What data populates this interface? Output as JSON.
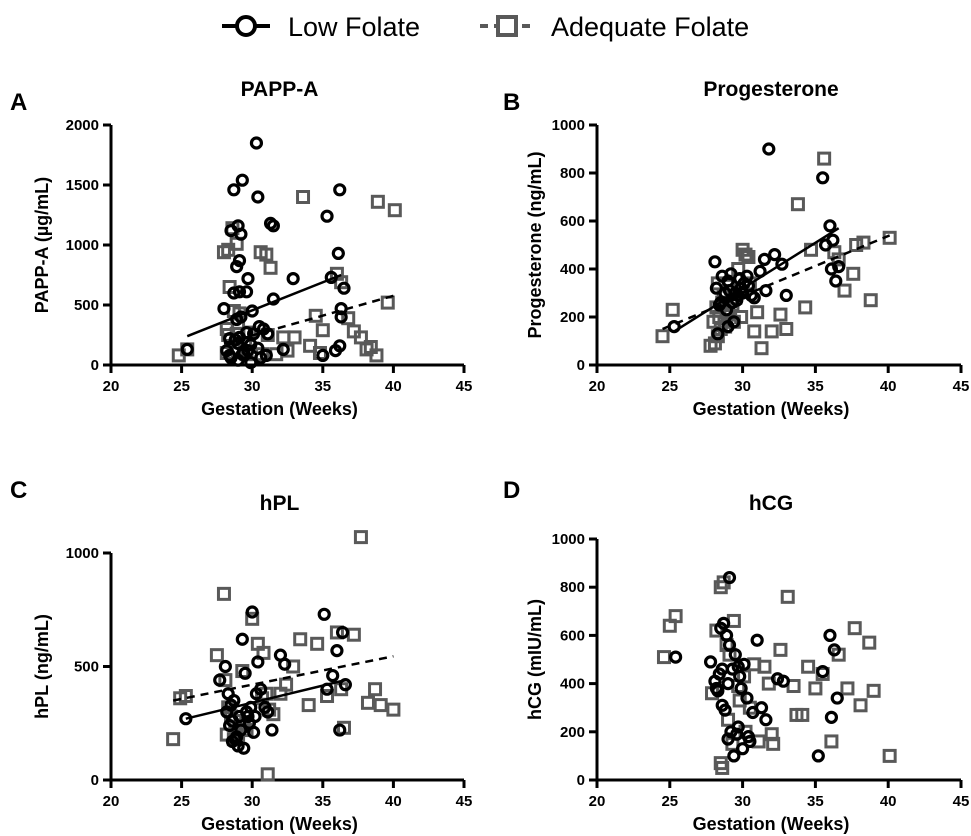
{
  "legend": {
    "low": "Low Folate",
    "adequate": "Adequate Folate"
  },
  "colors": {
    "low": "#000000",
    "adequate": "#595959"
  },
  "chart_data": [
    {
      "letter": "A",
      "type": "scatter",
      "title": "PAPP-A",
      "xlabel": "Gestation (Weeks)",
      "ylabel": "PAPP-A  (µg/mL)",
      "xlim": [
        20,
        45
      ],
      "ylim": [
        0,
        2000
      ],
      "xticks": [
        20,
        25,
        30,
        35,
        40,
        45
      ],
      "yticks": [
        0,
        500,
        1000,
        1500,
        2000
      ],
      "series": [
        {
          "name": "Low Folate",
          "x": [
            25.4,
            28.7,
            29.3,
            30.3,
            29.0,
            28.5,
            30.4,
            29.2,
            29.1,
            28.0,
            28.9,
            29.6,
            29.7,
            31.3,
            31.5,
            28.7,
            29.1,
            31.5,
            28.9,
            29.2,
            30.0,
            28.4,
            28.8,
            28.2,
            29.0,
            29.6,
            30.1,
            29.9,
            30.5,
            30.8,
            31.1,
            30.4,
            30.6,
            29.4,
            29.0,
            29.3,
            28.5,
            28.4,
            29.9,
            31.0,
            32.2,
            32.9,
            35.3,
            35.6,
            36.1,
            36.2,
            36.3,
            36.5,
            36.2,
            35.9,
            35.0,
            36.3,
            29.7,
            29.1
          ],
          "y": [
            130,
            1460,
            1540,
            1850,
            1160,
            1120,
            1400,
            1090,
            870,
            470,
            820,
            610,
            720,
            1180,
            1160,
            600,
            610,
            550,
            380,
            400,
            450,
            220,
            210,
            120,
            180,
            270,
            260,
            170,
            320,
            300,
            260,
            140,
            60,
            100,
            40,
            90,
            60,
            80,
            20,
            80,
            130,
            720,
            1240,
            730,
            930,
            1460,
            470,
            640,
            160,
            120,
            80,
            400,
            120,
            230
          ]
        },
        {
          "name": "Adequate Folate",
          "x": [
            24.8,
            25.4,
            28.0,
            28.3,
            28.6,
            28.9,
            29.0,
            28.4,
            28.7,
            29.1,
            28.2,
            28.9,
            29.5,
            30.6,
            31.0,
            31.3,
            28.2,
            29.0,
            28.3,
            29.8,
            30.7,
            31.1,
            31.7,
            32.2,
            32.5,
            33.0,
            33.6,
            34.1,
            34.5,
            35.0,
            36.0,
            36.3,
            36.8,
            37.2,
            37.7,
            38.1,
            38.4,
            38.8,
            38.9,
            39.6,
            40.1,
            34.8,
            29.6
          ],
          "y": [
            80,
            130,
            940,
            960,
            1140,
            1010,
            350,
            650,
            450,
            430,
            300,
            260,
            180,
            940,
            920,
            810,
            100,
            130,
            250,
            270,
            90,
            250,
            90,
            230,
            120,
            230,
            1400,
            160,
            410,
            290,
            760,
            690,
            390,
            280,
            230,
            130,
            150,
            80,
            1360,
            520,
            1290,
            100,
            90
          ]
        }
      ],
      "fits": [
        {
          "series": "Low Folate",
          "style": "solid",
          "x": [
            25.4,
            36.3
          ],
          "y": [
            240,
            750
          ]
        },
        {
          "series": "Adequate Folate",
          "style": "dashed",
          "x": [
            28.0,
            40.1
          ],
          "y": [
            180,
            580
          ]
        }
      ]
    },
    {
      "letter": "B",
      "type": "scatter",
      "title": "Progesterone",
      "xlabel": "Gestation (Weeks)",
      "ylabel": "Progesterone (ng/mL)",
      "xlim": [
        20,
        45
      ],
      "ylim": [
        0,
        1000
      ],
      "xticks": [
        20,
        25,
        30,
        35,
        40,
        45
      ],
      "yticks": [
        0,
        200,
        400,
        600,
        800,
        1000
      ],
      "series": [
        {
          "name": "Low Folate",
          "x": [
            25.3,
            28.1,
            28.2,
            28.5,
            28.8,
            29.0,
            29.2,
            29.3,
            29.5,
            29.8,
            30.1,
            30.4,
            30.6,
            28.9,
            29.4,
            29.7,
            29.9,
            30.3,
            28.6,
            29.1,
            29.6,
            28.4,
            28.3,
            29.0,
            30.0,
            30.8,
            31.5,
            31.8,
            32.2,
            32.7,
            33.0,
            31.2,
            31.6,
            35.5,
            35.7,
            36.0,
            36.2,
            36.4,
            36.6,
            36.1
          ],
          "y": [
            160,
            430,
            320,
            260,
            300,
            350,
            380,
            260,
            300,
            360,
            340,
            330,
            290,
            230,
            180,
            290,
            320,
            370,
            370,
            310,
            270,
            250,
            130,
            160,
            300,
            280,
            440,
            900,
            460,
            420,
            290,
            390,
            310,
            780,
            500,
            580,
            520,
            350,
            410,
            400
          ]
        },
        {
          "name": "Adequate Folate",
          "x": [
            24.5,
            25.2,
            27.8,
            28.0,
            28.2,
            28.4,
            28.5,
            28.6,
            28.7,
            28.9,
            29.1,
            29.3,
            29.5,
            29.7,
            30.0,
            30.2,
            30.4,
            28.1,
            28.3,
            28.8,
            29.0,
            30.5,
            31.0,
            31.3,
            32.0,
            32.6,
            33.0,
            33.8,
            34.3,
            34.7,
            35.6,
            36.3,
            36.6,
            37.0,
            37.6,
            37.8,
            38.3,
            38.8,
            40.1,
            29.4,
            28.3,
            29.9,
            30.8
          ],
          "y": [
            120,
            230,
            80,
            180,
            240,
            200,
            150,
            260,
            290,
            220,
            330,
            250,
            280,
            400,
            480,
            460,
            450,
            90,
            120,
            160,
            210,
            340,
            220,
            70,
            140,
            210,
            150,
            670,
            240,
            480,
            860,
            470,
            440,
            310,
            380,
            500,
            510,
            270,
            530,
            180,
            340,
            200,
            140
          ]
        }
      ],
      "fits": [
        {
          "series": "Low Folate",
          "style": "solid",
          "x": [
            25.3,
            36.6
          ],
          "y": [
            140,
            570
          ]
        },
        {
          "series": "Adequate Folate",
          "style": "dashed",
          "x": [
            24.5,
            40.1
          ],
          "y": [
            150,
            540
          ]
        }
      ]
    },
    {
      "letter": "C",
      "type": "scatter",
      "title": "hPL",
      "xlabel": "Gestation (Weeks)",
      "ylabel": "hPL (ng/mL)",
      "xlim": [
        20,
        45
      ],
      "ylim": [
        0,
        1000
      ],
      "xticks": [
        20,
        25,
        30,
        35,
        40,
        45
      ],
      "yticks": [
        0,
        500,
        1000
      ],
      "series": [
        {
          "name": "Low Folate",
          "x": [
            25.3,
            27.7,
            28.1,
            28.3,
            28.5,
            28.6,
            28.8,
            29.0,
            29.2,
            29.4,
            29.6,
            29.8,
            30.0,
            30.2,
            30.4,
            30.6,
            28.2,
            28.7,
            29.1,
            29.5,
            29.9,
            28.4,
            28.9,
            29.3,
            30.1,
            28.6,
            29.7,
            30.3,
            30.9,
            31.1,
            31.4,
            32.0,
            32.3,
            35.1,
            35.3,
            35.7,
            36.0,
            36.2,
            36.4,
            36.6
          ],
          "y": [
            270,
            440,
            500,
            380,
            330,
            260,
            180,
            150,
            220,
            140,
            300,
            250,
            740,
            280,
            520,
            400,
            300,
            350,
            280,
            470,
            320,
            240,
            190,
            620,
            210,
            170,
            280,
            380,
            320,
            300,
            220,
            550,
            510,
            730,
            400,
            460,
            570,
            220,
            650,
            420
          ]
        },
        {
          "name": "Adequate Folate",
          "x": [
            24.4,
            24.9,
            25.3,
            27.5,
            28.0,
            28.1,
            28.3,
            28.5,
            28.8,
            29.0,
            29.3,
            29.6,
            30.0,
            30.4,
            30.7,
            31.0,
            31.2,
            31.5,
            32.0,
            32.4,
            32.9,
            33.4,
            34.0,
            34.6,
            35.3,
            36.0,
            36.3,
            36.5,
            37.2,
            37.7,
            38.2,
            38.7,
            39.1,
            40.0,
            28.2,
            28.7,
            29.4,
            30.8,
            31.1
          ],
          "y": [
            180,
            360,
            370,
            550,
            820,
            440,
            320,
            280,
            260,
            200,
            480,
            220,
            710,
            600,
            360,
            380,
            310,
            290,
            380,
            420,
            500,
            620,
            330,
            600,
            370,
            650,
            400,
            230,
            640,
            1070,
            340,
            400,
            330,
            310,
            200,
            180,
            240,
            560,
            25
          ]
        }
      ],
      "fits": [
        {
          "series": "Low Folate",
          "style": "solid",
          "x": [
            25.3,
            36.6
          ],
          "y": [
            270,
            440
          ]
        },
        {
          "series": "Adequate Folate",
          "style": "dashed",
          "x": [
            24.4,
            40.0
          ],
          "y": [
            350,
            545
          ]
        }
      ]
    },
    {
      "letter": "D",
      "type": "scatter",
      "title": "hCG",
      "xlabel": "Gestation (Weeks)",
      "ylabel": "hCG (mIU/mL)",
      "xlim": [
        20,
        45
      ],
      "ylim": [
        0,
        1000
      ],
      "xticks": [
        20,
        25,
        30,
        35,
        40,
        45
      ],
      "yticks": [
        0,
        200,
        400,
        600,
        800,
        1000
      ],
      "series": [
        {
          "name": "Low Folate",
          "x": [
            25.4,
            27.8,
            28.1,
            28.3,
            28.5,
            28.7,
            28.9,
            29.1,
            29.3,
            29.5,
            29.7,
            29.9,
            30.1,
            30.3,
            30.5,
            30.7,
            28.2,
            28.6,
            29.0,
            29.4,
            29.8,
            28.4,
            28.8,
            29.2,
            29.6,
            30.0,
            30.4,
            28.6,
            29.1,
            31.0,
            31.3,
            31.6,
            32.4,
            32.8,
            35.2,
            35.5,
            36.0,
            36.3,
            36.5,
            36.1,
            29.0,
            29.7
          ],
          "y": [
            510,
            490,
            410,
            370,
            630,
            650,
            600,
            840,
            460,
            520,
            470,
            380,
            480,
            340,
            160,
            280,
            380,
            310,
            170,
            100,
            430,
            440,
            290,
            200,
            190,
            130,
            180,
            460,
            560,
            580,
            300,
            250,
            420,
            410,
            100,
            450,
            600,
            540,
            340,
            260,
            400,
            220
          ]
        },
        {
          "name": "Adequate Folate",
          "x": [
            24.6,
            25.0,
            25.4,
            27.9,
            28.2,
            28.5,
            28.7,
            28.9,
            29.1,
            29.4,
            29.7,
            30.1,
            30.5,
            30.8,
            31.1,
            31.5,
            31.8,
            32.1,
            32.6,
            33.1,
            33.7,
            34.1,
            34.5,
            35.0,
            35.5,
            36.1,
            36.6,
            37.2,
            37.7,
            38.1,
            38.7,
            39.0,
            40.1,
            28.5,
            28.6,
            29.0,
            29.3,
            29.8,
            30.2,
            32.0,
            33.5
          ],
          "y": [
            510,
            640,
            680,
            360,
            620,
            800,
            820,
            560,
            520,
            660,
            390,
            430,
            300,
            480,
            160,
            470,
            400,
            150,
            540,
            760,
            270,
            270,
            470,
            380,
            440,
            160,
            520,
            380,
            630,
            310,
            570,
            370,
            100,
            70,
            50,
            250,
            150,
            330,
            200,
            190,
            390
          ]
        }
      ],
      "fits": []
    }
  ]
}
